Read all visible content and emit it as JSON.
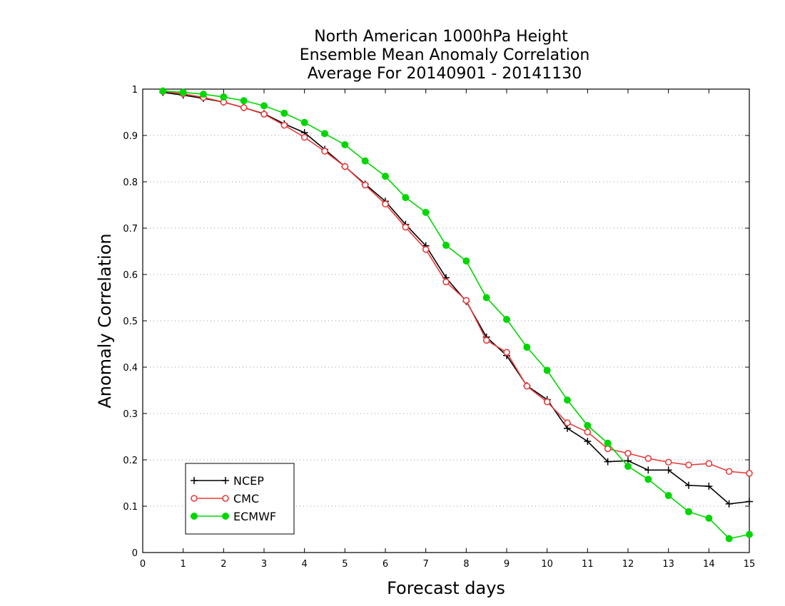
{
  "chart_data": {
    "type": "line",
    "title": [
      "North American 1000hPa Height",
      "Ensemble Mean Anomaly Correlation",
      "Average For 20140901 - 20141130"
    ],
    "xlabel": "Forecast days",
    "ylabel": "Anomaly Correlation",
    "xlim": [
      0,
      15
    ],
    "ylim": [
      0,
      1
    ],
    "xticks": [
      "0",
      "1",
      "2",
      "3",
      "4",
      "5",
      "6",
      "7",
      "8",
      "9",
      "10",
      "11",
      "12",
      "13",
      "14",
      "15"
    ],
    "yticks": [
      "0",
      "0.1",
      "0.2",
      "0.3",
      "0.4",
      "0.5",
      "0.6",
      "0.7",
      "0.8",
      "0.9",
      "1"
    ],
    "grid": "horizontal dotted",
    "legend_position": "bottom-left",
    "x": [
      0.5,
      1,
      1.5,
      2,
      2.5,
      3,
      3.5,
      4,
      4.5,
      5,
      5.5,
      6,
      6.5,
      7,
      7.5,
      8,
      8.5,
      9,
      9.5,
      10,
      10.5,
      11,
      11.5,
      12,
      12.5,
      13,
      13.5,
      14,
      14.5,
      15
    ],
    "series": [
      {
        "name": "NCEP",
        "color": "#000000",
        "marker": "plus",
        "values": [
          0.993,
          0.987,
          0.98,
          0.972,
          0.96,
          0.947,
          0.925,
          0.906,
          0.87,
          0.833,
          0.795,
          0.758,
          0.708,
          0.662,
          0.593,
          0.542,
          0.465,
          0.425,
          0.36,
          0.33,
          0.268,
          0.24,
          0.196,
          0.198,
          0.178,
          0.178,
          0.145,
          0.143,
          0.105,
          0.11
        ]
      },
      {
        "name": "CMC",
        "color": "#e83c3c",
        "marker": "open-circle",
        "values": [
          0.995,
          0.99,
          0.982,
          0.972,
          0.96,
          0.946,
          0.922,
          0.896,
          0.866,
          0.833,
          0.793,
          0.752,
          0.702,
          0.654,
          0.584,
          0.544,
          0.458,
          0.432,
          0.359,
          0.325,
          0.28,
          0.26,
          0.224,
          0.214,
          0.203,
          0.195,
          0.189,
          0.192,
          0.175,
          0.171
        ]
      },
      {
        "name": "ECMWF",
        "color": "#00d600",
        "marker": "filled-circle",
        "values": [
          0.996,
          0.993,
          0.989,
          0.983,
          0.975,
          0.964,
          0.948,
          0.928,
          0.904,
          0.88,
          0.845,
          0.812,
          0.766,
          0.734,
          0.663,
          0.629,
          0.55,
          0.503,
          0.443,
          0.393,
          0.329,
          0.274,
          0.236,
          0.186,
          0.158,
          0.123,
          0.088,
          0.074,
          0.03,
          0.039
        ]
      }
    ]
  }
}
